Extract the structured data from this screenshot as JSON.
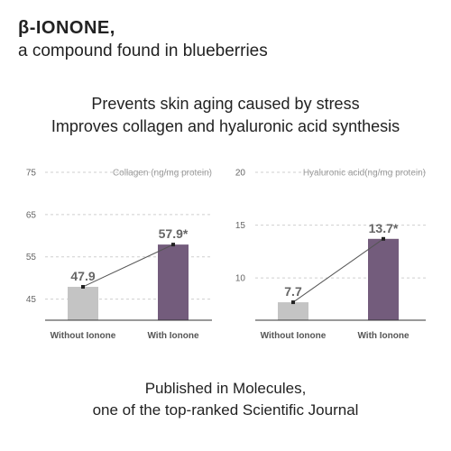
{
  "header": {
    "title": "β-IONONE,",
    "subtitle": "a compound found in blueberries"
  },
  "headline": {
    "line1": "Prevents skin aging caused by stress",
    "line2": "Improves collagen and hyaluronic acid synthesis"
  },
  "footer": {
    "line1": "Published in Molecules,",
    "line2": "one of the top-ranked Scientific Journal"
  },
  "colors": {
    "without": "#c4c4c4",
    "with": "#735c7c",
    "grid": "#cfcfcf",
    "axis": "#333333",
    "connector": "#555555"
  },
  "chart_data": [
    {
      "type": "bar",
      "ylabel": "Collagen (ng/mg protein)",
      "categories": [
        "Without Ionone",
        "With Ionone"
      ],
      "values": [
        47.9,
        57.9
      ],
      "value_labels": [
        "47.9",
        "57.9*"
      ],
      "yticks": [
        45,
        55,
        65,
        75
      ],
      "ylim": [
        40,
        75
      ],
      "grid": true
    },
    {
      "type": "bar",
      "ylabel": "Hyaluronic acid(ng/mg protein)",
      "categories": [
        "Without Ionone",
        "With Ionone"
      ],
      "values": [
        7.7,
        13.7
      ],
      "value_labels": [
        "7.7",
        "13.7*"
      ],
      "yticks": [
        10,
        15,
        20
      ],
      "ylim": [
        6,
        20
      ],
      "grid": true
    }
  ]
}
